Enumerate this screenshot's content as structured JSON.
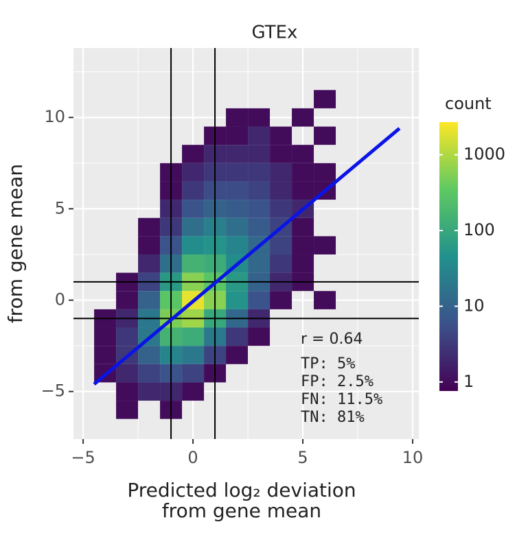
{
  "chart_data": {
    "type": "bin2d",
    "title": "GTEx",
    "x_label": [
      "Predicted log₂ deviation",
      "from gene mean"
    ],
    "y_label": "from gene mean",
    "xlim": [
      -5.44,
      10.28
    ],
    "ylim": [
      -7.6,
      13.8
    ],
    "xticks": [
      {
        "value": -5,
        "label": "−5"
      },
      0,
      5,
      10
    ],
    "yticks": [
      {
        "value": -5,
        "label": "−5"
      },
      0,
      5,
      10
    ],
    "xminor": [
      -2.5,
      2.5,
      7.5
    ],
    "yminor": [
      -2.5,
      2.5,
      7.5,
      12.5
    ],
    "grid": true,
    "bin_x": [
      -4,
      -3,
      -2,
      -1,
      0,
      1,
      2,
      3,
      4,
      5,
      6,
      7
    ],
    "bin_y": [
      11,
      10,
      9,
      8,
      7,
      6,
      5,
      4,
      3,
      2,
      1,
      0,
      -1,
      -2,
      -3,
      -4,
      -5,
      -6
    ],
    "counts": [
      [
        null,
        null,
        null,
        null,
        null,
        null,
        null,
        null,
        null,
        null,
        1,
        null
      ],
      [
        null,
        null,
        null,
        null,
        null,
        null,
        1,
        1,
        null,
        1,
        null,
        null
      ],
      [
        null,
        null,
        null,
        null,
        null,
        1,
        1,
        2,
        1,
        null,
        1,
        null
      ],
      [
        null,
        null,
        null,
        null,
        1,
        2,
        2,
        2,
        1,
        1,
        null,
        null
      ],
      [
        null,
        null,
        null,
        1,
        2,
        3,
        3,
        3,
        2,
        1,
        1,
        null
      ],
      [
        null,
        null,
        null,
        1,
        3,
        5,
        5,
        4,
        2,
        1,
        1,
        null
      ],
      [
        null,
        null,
        null,
        2,
        6,
        10,
        8,
        6,
        3,
        2,
        null,
        null
      ],
      [
        null,
        null,
        1,
        3,
        15,
        25,
        15,
        8,
        4,
        1,
        null,
        null
      ],
      [
        null,
        null,
        1,
        6,
        40,
        50,
        30,
        12,
        4,
        1,
        1,
        null
      ],
      [
        null,
        null,
        2,
        15,
        150,
        120,
        40,
        12,
        3,
        1,
        null,
        null
      ],
      [
        null,
        1,
        4,
        60,
        600,
        300,
        60,
        10,
        2,
        1,
        null,
        null
      ],
      [
        null,
        1,
        10,
        300,
        2000,
        600,
        50,
        6,
        1,
        null,
        1,
        null
      ],
      [
        1,
        2,
        20,
        500,
        800,
        100,
        12,
        2,
        null,
        null,
        null,
        null
      ],
      [
        1,
        3,
        20,
        150,
        120,
        20,
        3,
        1,
        null,
        null,
        null,
        null
      ],
      [
        1,
        3,
        10,
        30,
        20,
        4,
        1,
        null,
        null,
        null,
        null,
        null
      ],
      [
        1,
        2,
        4,
        6,
        4,
        1,
        null,
        null,
        null,
        null,
        null,
        null
      ],
      [
        null,
        1,
        2,
        2,
        1,
        null,
        null,
        null,
        null,
        null,
        null,
        null
      ],
      [
        null,
        1,
        null,
        1,
        null,
        null,
        null,
        null,
        null,
        null,
        null,
        null
      ]
    ],
    "vlines": [
      -1,
      1
    ],
    "hlines": [
      -1,
      1
    ],
    "fit": {
      "x": [
        -4.5,
        9.4
      ],
      "y": [
        -4.6,
        9.4
      ],
      "color": "#0a14e6"
    },
    "annotations": [
      "r = 0.64",
      "TP: 5%",
      "FP: 2.5%",
      "FN: 11.5%",
      "TN: 81%"
    ],
    "colorbar": {
      "title": "count",
      "log": true,
      "lim": [
        0.76,
        2700
      ],
      "ticks": [
        1,
        10,
        100,
        1000
      ],
      "colors": [
        "#440154",
        "#3b528b",
        "#21918c",
        "#5ec962",
        "#fde725"
      ]
    }
  }
}
